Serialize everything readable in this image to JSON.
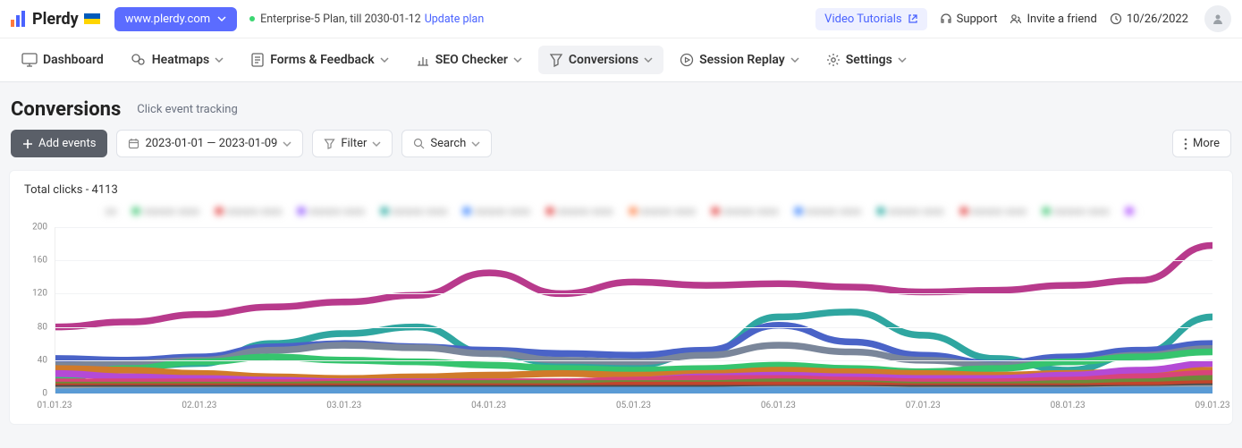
{
  "brand": "Plerdy",
  "site_button": "www.plerdy.com",
  "plan_text": "Enterprise-5 Plan, till 2030-01-12",
  "plan_link": "Update plan",
  "top_right": {
    "video": "Video Tutorials",
    "support": "Support",
    "invite": "Invite a friend",
    "date": "10/26/2022"
  },
  "nav": [
    {
      "label": "Dashboard",
      "has_chev": false
    },
    {
      "label": "Heatmaps",
      "has_chev": true
    },
    {
      "label": "Forms & Feedback",
      "has_chev": true
    },
    {
      "label": "SEO Checker",
      "has_chev": true
    },
    {
      "label": "Conversions",
      "has_chev": true,
      "active": true
    },
    {
      "label": "Session Replay",
      "has_chev": true
    },
    {
      "label": "Settings",
      "has_chev": true
    }
  ],
  "page": {
    "title": "Conversions",
    "subtitle": "Click event tracking"
  },
  "toolbar": {
    "add": "Add events",
    "daterange": "2023-01-01 — 2023-01-09",
    "filter": "Filter",
    "search": "Search",
    "more": "More"
  },
  "chart": {
    "title_prefix": "Total clicks - ",
    "total": "4113",
    "type": "line",
    "ylim": [
      0,
      200
    ],
    "yticks": [
      0,
      40,
      80,
      120,
      160,
      200
    ],
    "xlabels": [
      "01.01.23",
      "02.01.23",
      "03.01.23",
      "04.01.23",
      "05.01.23",
      "06.01.23",
      "07.01.23",
      "08.01.23",
      "09.01.23"
    ],
    "background_color": "#ffffff",
    "grid_color": "#f2f3f5",
    "axis_label_color": "#888888",
    "axis_label_fontsize": 10,
    "line_width": 1.4,
    "legend_colors": [
      "#2e7bff",
      "#ff7a3d",
      "#36c46e",
      "#e23b3b",
      "#8a4bff",
      "#1aa59b",
      "#2e7bff",
      "#e23b3b",
      "#ff7a3d",
      "#e23b3b",
      "#2e7bff",
      "#1aa59b",
      "#e23b3b",
      "#36c46e",
      "#a63bff",
      "#2e7bff"
    ],
    "series": [
      {
        "color": "#b83a8c",
        "values": [
          80,
          86,
          95,
          104,
          110,
          118,
          145,
          120,
          134,
          130,
          132,
          128,
          122,
          124,
          130,
          136,
          178
        ]
      },
      {
        "color": "#2fa6a0",
        "values": [
          30,
          32,
          36,
          60,
          72,
          80,
          48,
          36,
          34,
          50,
          92,
          98,
          70,
          42,
          28,
          48,
          92
        ]
      },
      {
        "color": "#4a63c7",
        "values": [
          42,
          40,
          44,
          56,
          60,
          56,
          52,
          48,
          46,
          52,
          82,
          62,
          46,
          36,
          44,
          52,
          60
        ]
      },
      {
        "color": "#7a869a",
        "values": [
          34,
          36,
          40,
          52,
          58,
          55,
          48,
          40,
          38,
          46,
          58,
          50,
          40,
          34,
          38,
          46,
          54
        ]
      },
      {
        "color": "#36c46e",
        "values": [
          18,
          30,
          38,
          44,
          40,
          38,
          34,
          30,
          28,
          30,
          34,
          30,
          26,
          30,
          38,
          44,
          50
        ]
      },
      {
        "color": "#d07a2a",
        "values": [
          30,
          28,
          24,
          20,
          18,
          20,
          22,
          24,
          22,
          24,
          28,
          26,
          24,
          22,
          24,
          26,
          28
        ]
      },
      {
        "color": "#b44ad6",
        "values": [
          24,
          20,
          18,
          16,
          14,
          14,
          14,
          14,
          16,
          20,
          22,
          20,
          18,
          18,
          22,
          28,
          36
        ]
      },
      {
        "color": "#d8447a",
        "values": [
          14,
          14,
          14,
          13,
          13,
          13,
          14,
          14,
          16,
          18,
          18,
          16,
          14,
          14,
          16,
          20,
          24
        ]
      },
      {
        "color": "#6d8a3a",
        "values": [
          10,
          10,
          10,
          10,
          11,
          12,
          12,
          12,
          12,
          12,
          14,
          12,
          10,
          10,
          12,
          14,
          18
        ]
      },
      {
        "color": "#c2452c",
        "values": [
          8,
          8,
          8,
          8,
          8,
          8,
          8,
          8,
          10,
          10,
          10,
          10,
          8,
          8,
          8,
          10,
          12
        ]
      },
      {
        "color": "#4a4a4a",
        "values": [
          6,
          6,
          6,
          6,
          6,
          6,
          6,
          6,
          6,
          6,
          6,
          6,
          6,
          6,
          6,
          6,
          8
        ]
      },
      {
        "color": "#9aa0a6",
        "values": [
          4,
          4,
          4,
          4,
          4,
          4,
          4,
          4,
          4,
          4,
          5,
          5,
          4,
          4,
          4,
          5,
          6
        ]
      },
      {
        "color": "#5a9bd5",
        "values": [
          2,
          3,
          3,
          4,
          4,
          4,
          4,
          4,
          4,
          4,
          4,
          4,
          3,
          3,
          3,
          4,
          4
        ]
      }
    ]
  }
}
